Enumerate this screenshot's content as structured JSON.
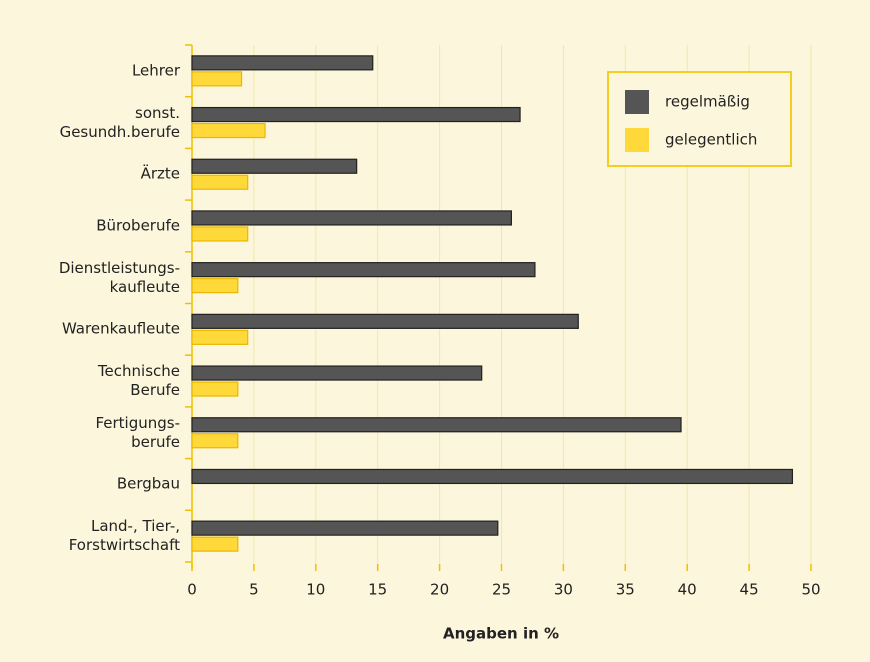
{
  "chart_data": {
    "type": "hbar",
    "xlabel": "Angaben in %",
    "categories": [
      "Lehrer",
      "sonst.\nGesundh.berufe",
      "Ärzte",
      "Büroberufe",
      "Dienstleistungs-\nkaufleute",
      "Warenkaufleute",
      "Technische\nBerufe",
      "Fertigungs-\nberufe",
      "Bergbau",
      "Land-, Tier-,\nForstwirtschaft"
    ],
    "series": [
      {
        "name": "regelmäßig",
        "color": "#555555",
        "values": [
          14.6,
          26.5,
          13.3,
          25.8,
          27.7,
          31.2,
          23.4,
          39.5,
          48.5,
          24.7
        ]
      },
      {
        "name": "gelegentlich",
        "color": "#ffd83a",
        "values": [
          4.0,
          5.9,
          4.5,
          4.5,
          3.7,
          4.5,
          3.7,
          3.7,
          0,
          3.7
        ]
      }
    ],
    "xlim": [
      0,
      50
    ],
    "xticks": [
      0,
      5,
      10,
      15,
      20,
      25,
      30,
      35,
      40,
      45,
      50
    ],
    "grid": true
  }
}
